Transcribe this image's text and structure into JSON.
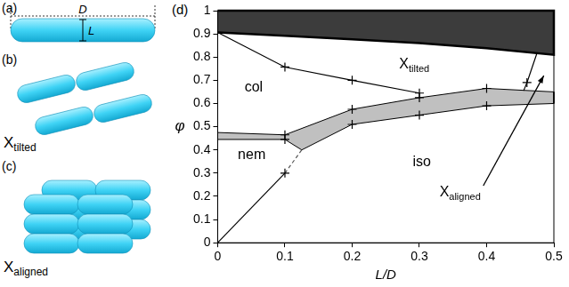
{
  "chart_data": {
    "type": "line",
    "panel_label": "(d)",
    "x_label": "L/D",
    "y_label": "φ",
    "xlim": [
      0,
      0.5
    ],
    "xticks": [
      0,
      0.1,
      0.2,
      0.3,
      0.4,
      0.5
    ],
    "ylim": [
      0,
      1
    ],
    "yticks": [
      0,
      0.1,
      0.2,
      0.3,
      0.4,
      0.5,
      0.6,
      0.7,
      0.8,
      0.9,
      1
    ],
    "grid": false,
    "series": [
      {
        "type": "area",
        "color": "#3c3c3c",
        "x": [
          0,
          0.1,
          0.2,
          0.3,
          0.4,
          0.5,
          0.5,
          0
        ],
        "y": [
          0.906,
          0.892,
          0.877,
          0.86,
          0.838,
          0.81,
          1,
          1
        ]
      },
      {
        "type": "area",
        "color": "#c0c0c0",
        "x": [
          0,
          0.1,
          0.2,
          0.3,
          0.4,
          0.5,
          0.5,
          0.4,
          0.3,
          0.2,
          0.125,
          0.1,
          0
        ],
        "y": [
          0.475,
          0.465,
          0.575,
          0.625,
          0.665,
          0.65,
          0.6,
          0.59,
          0.55,
          0.51,
          0.4,
          0.445,
          0.445
        ]
      },
      {
        "type": "line",
        "color": "#000000",
        "line_style": "solid",
        "x": [
          0,
          0.1,
          0.2,
          0.3
        ],
        "y": [
          0.906,
          0.757,
          0.7,
          0.645
        ]
      },
      {
        "type": "line",
        "color": "#000000",
        "line_style": "solid",
        "x": [
          0,
          0.1
        ],
        "y": [
          0,
          0.3
        ]
      },
      {
        "type": "line",
        "color": "#555555",
        "line_style": "dashed",
        "x": [
          0.1,
          0.125
        ],
        "y": [
          0.3,
          0.4
        ]
      },
      {
        "type": "line",
        "color": "#000000",
        "line_style": "solid",
        "x": [
          0.455,
          0.46,
          0.475
        ],
        "y": [
          0.655,
          0.69,
          0.818
        ]
      },
      {
        "type": "scatter",
        "color": "#000000",
        "marker": "cross",
        "x": [
          0.1,
          0.2,
          0.3,
          0.1,
          0.1,
          0.1,
          0.2,
          0.2,
          0.3,
          0.3,
          0.4,
          0.4,
          0.46
        ],
        "y": [
          0.757,
          0.7,
          0.645,
          0.465,
          0.445,
          0.3,
          0.575,
          0.51,
          0.625,
          0.55,
          0.665,
          0.59,
          0.69
        ]
      }
    ],
    "annotations": [
      {
        "text": "col",
        "x": 0.04,
        "y": 0.65
      },
      {
        "text": "nem",
        "x": 0.03,
        "y": 0.36
      },
      {
        "text": "iso",
        "x": 0.29,
        "y": 0.33
      },
      {
        "text": "X",
        "subscript": "tilted",
        "x": 0.27,
        "y": 0.75
      },
      {
        "text": "X",
        "subscript": "aligned",
        "x": 0.33,
        "y": 0.2,
        "arrow_to": [
          0.485,
          0.72
        ]
      }
    ]
  },
  "illustrations": [
    {
      "label": "(a)",
      "dimensions": [
        "D",
        "L"
      ]
    },
    {
      "label": "(b)",
      "caption": {
        "text": "X",
        "subscript": "tilted"
      }
    },
    {
      "label": "(c)",
      "caption": {
        "text": "X",
        "subscript": "aligned"
      }
    }
  ]
}
